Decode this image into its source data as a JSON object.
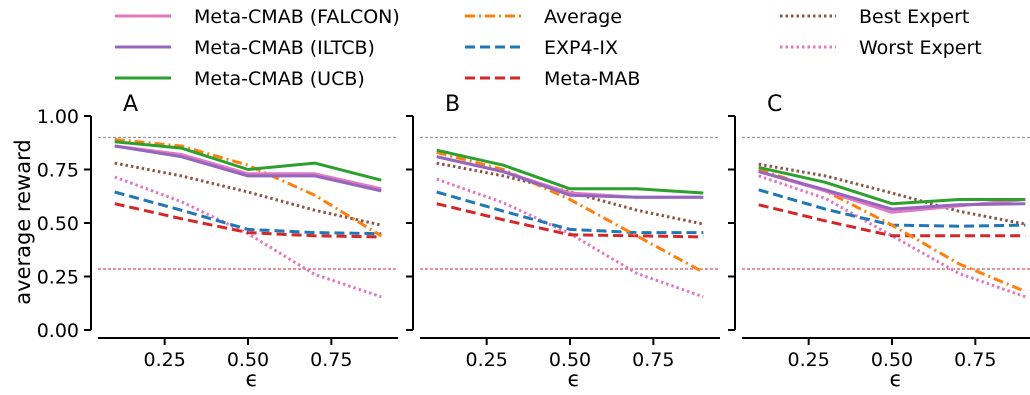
{
  "chart_data": {
    "type": "line",
    "ylabel": "average reward",
    "xlabel": "ϵ",
    "ylim": [
      0.0,
      1.0
    ],
    "xlim": [
      0.05,
      0.95
    ],
    "yticks": [
      "0.00",
      "0.25",
      "0.50",
      "0.75",
      "1.00"
    ],
    "xticks": [
      "0.25",
      "0.50",
      "0.75"
    ],
    "legend_placement": "top",
    "reference_lines": [
      {
        "y": 0.9,
        "color": "#8c8c8c"
      },
      {
        "y": 0.285,
        "color": "#d62728"
      }
    ],
    "legend": [
      {
        "key": "falcon",
        "label": "Meta-CMAB (FALCON)"
      },
      {
        "key": "iltcb",
        "label": "Meta-CMAB (ILTCB)"
      },
      {
        "key": "ucb",
        "label": "Meta-CMAB (UCB)"
      },
      {
        "key": "average",
        "label": "Average"
      },
      {
        "key": "exp4",
        "label": "EXP4-IX"
      },
      {
        "key": "metamab",
        "label": "Meta-MAB"
      },
      {
        "key": "best",
        "label": "Best Expert"
      },
      {
        "key": "worst",
        "label": "Worst Expert"
      }
    ],
    "styles": {
      "falcon": {
        "color": "#e377c2",
        "dash": "solid"
      },
      "iltcb": {
        "color": "#9467bd",
        "dash": "solid"
      },
      "ucb": {
        "color": "#2ca02c",
        "dash": "solid"
      },
      "average": {
        "color": "#ff7f0e",
        "dash": "dashdot"
      },
      "exp4": {
        "color": "#1f77b4",
        "dash": "dashed"
      },
      "metamab": {
        "color": "#d62728",
        "dash": "dashed"
      },
      "best": {
        "color": "#8c564b",
        "dash": "dotted"
      },
      "worst": {
        "color": "#e377c2",
        "dash": "dotted"
      }
    },
    "panels": [
      {
        "label": "A",
        "x": [
          0.1,
          0.3,
          0.5,
          0.7,
          0.9
        ],
        "series": {
          "falcon": [
            0.86,
            0.82,
            0.73,
            0.73,
            0.66
          ],
          "iltcb": [
            0.86,
            0.81,
            0.72,
            0.72,
            0.65
          ],
          "ucb": [
            0.88,
            0.85,
            0.75,
            0.78,
            0.7
          ],
          "average": [
            0.89,
            0.86,
            0.77,
            0.63,
            0.44
          ],
          "exp4": [
            0.645,
            0.56,
            0.47,
            0.455,
            0.45
          ],
          "metamab": [
            0.59,
            0.52,
            0.455,
            0.44,
            0.435
          ],
          "best": [
            0.78,
            0.72,
            0.645,
            0.56,
            0.49
          ],
          "worst": [
            0.715,
            0.6,
            0.45,
            0.26,
            0.155
          ]
        }
      },
      {
        "label": "B",
        "x": [
          0.1,
          0.3,
          0.5,
          0.7,
          0.9
        ],
        "series": {
          "falcon": [
            0.81,
            0.74,
            0.64,
            0.62,
            0.62
          ],
          "iltcb": [
            0.81,
            0.74,
            0.63,
            0.62,
            0.62
          ],
          "ucb": [
            0.84,
            0.77,
            0.66,
            0.66,
            0.64
          ],
          "average": [
            0.83,
            0.75,
            0.61,
            0.44,
            0.27
          ],
          "exp4": [
            0.645,
            0.555,
            0.47,
            0.455,
            0.455
          ],
          "metamab": [
            0.59,
            0.515,
            0.445,
            0.44,
            0.435
          ],
          "best": [
            0.78,
            0.72,
            0.645,
            0.56,
            0.495
          ],
          "worst": [
            0.705,
            0.595,
            0.45,
            0.265,
            0.155
          ]
        }
      },
      {
        "label": "C",
        "x": [
          0.1,
          0.3,
          0.5,
          0.7,
          0.9
        ],
        "series": {
          "falcon": [
            0.74,
            0.65,
            0.55,
            0.58,
            0.61
          ],
          "iltcb": [
            0.74,
            0.655,
            0.565,
            0.585,
            0.59
          ],
          "ucb": [
            0.76,
            0.69,
            0.59,
            0.61,
            0.61
          ],
          "average": [
            0.75,
            0.65,
            0.49,
            0.31,
            0.18
          ],
          "exp4": [
            0.655,
            0.565,
            0.49,
            0.485,
            0.49
          ],
          "metamab": [
            0.585,
            0.51,
            0.44,
            0.44,
            0.44
          ],
          "best": [
            0.775,
            0.72,
            0.64,
            0.555,
            0.495
          ],
          "worst": [
            0.72,
            0.615,
            0.44,
            0.265,
            0.155
          ]
        }
      }
    ]
  }
}
